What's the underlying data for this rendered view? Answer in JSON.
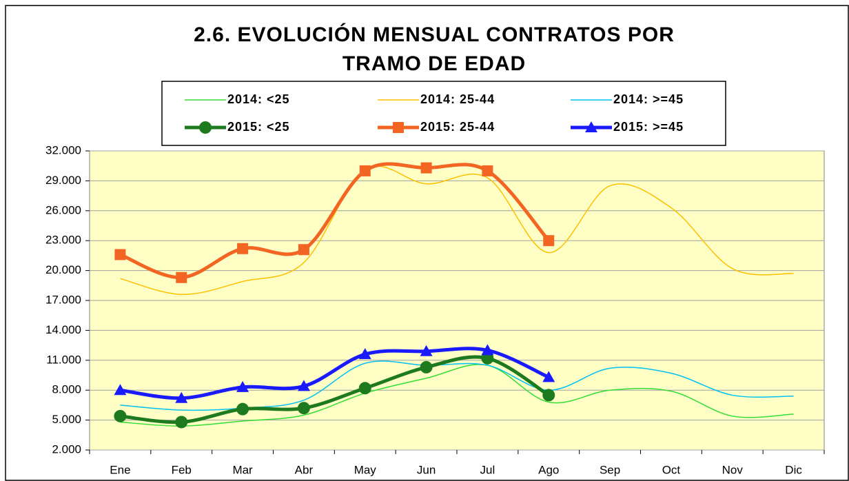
{
  "chart_data": {
    "type": "line",
    "title": "2.6. EVOLUCIÓN MENSUAL CONTRATOS POR TRAMO DE EDAD",
    "categories": [
      "Ene",
      "Feb",
      "Mar",
      "Abr",
      "May",
      "Jun",
      "Jul",
      "Ago",
      "Sep",
      "Oct",
      "Nov",
      "Dic"
    ],
    "ylim": [
      2000,
      32000
    ],
    "yticks": [
      {
        "value": 2000,
        "label": "2.000"
      },
      {
        "value": 5000,
        "label": "5.000"
      },
      {
        "value": 8000,
        "label": "8.000"
      },
      {
        "value": 11000,
        "label": "11.000"
      },
      {
        "value": 14000,
        "label": "14.000"
      },
      {
        "value": 17000,
        "label": "17.000"
      },
      {
        "value": 20000,
        "label": "20.000"
      },
      {
        "value": 23000,
        "label": "23.000"
      },
      {
        "value": 26000,
        "label": "26.000"
      },
      {
        "value": 29000,
        "label": "29.000"
      },
      {
        "value": 32000,
        "label": "32.000"
      }
    ],
    "grid": true,
    "series": [
      {
        "name": "2014: <25",
        "color": "#33dd33",
        "width": 1.5,
        "marker": "none",
        "values": [
          4800,
          4400,
          4900,
          5500,
          7700,
          9200,
          10500,
          6800,
          8000,
          7900,
          5400,
          5600
        ]
      },
      {
        "name": "2014: 25-44",
        "color": "#ffc000",
        "width": 1.5,
        "marker": "none",
        "values": [
          19200,
          17600,
          18900,
          20800,
          30100,
          28700,
          29300,
          21800,
          28500,
          26300,
          20200,
          19700
        ]
      },
      {
        "name": "2014: >=45",
        "color": "#00c0f0",
        "width": 1.5,
        "marker": "none",
        "values": [
          6500,
          6000,
          6200,
          7000,
          10700,
          10500,
          10500,
          8000,
          10200,
          9700,
          7500,
          7400
        ]
      },
      {
        "name": "2015: <25",
        "color": "#1e7a1e",
        "width": 5,
        "marker": "circle",
        "values": [
          5400,
          4800,
          6100,
          6200,
          8200,
          10300,
          11200,
          7500,
          null,
          null,
          null,
          null
        ]
      },
      {
        "name": "2015: 25-44",
        "color": "#f26522",
        "width": 5,
        "marker": "square",
        "values": [
          21600,
          19300,
          22200,
          22100,
          30000,
          30300,
          30000,
          23000,
          null,
          null,
          null,
          null
        ]
      },
      {
        "name": "2015: >=45",
        "color": "#1a1aff",
        "width": 5,
        "marker": "triangle",
        "values": [
          8000,
          7200,
          8300,
          8400,
          11600,
          11900,
          12000,
          9300,
          null,
          null,
          null,
          null
        ]
      }
    ]
  }
}
